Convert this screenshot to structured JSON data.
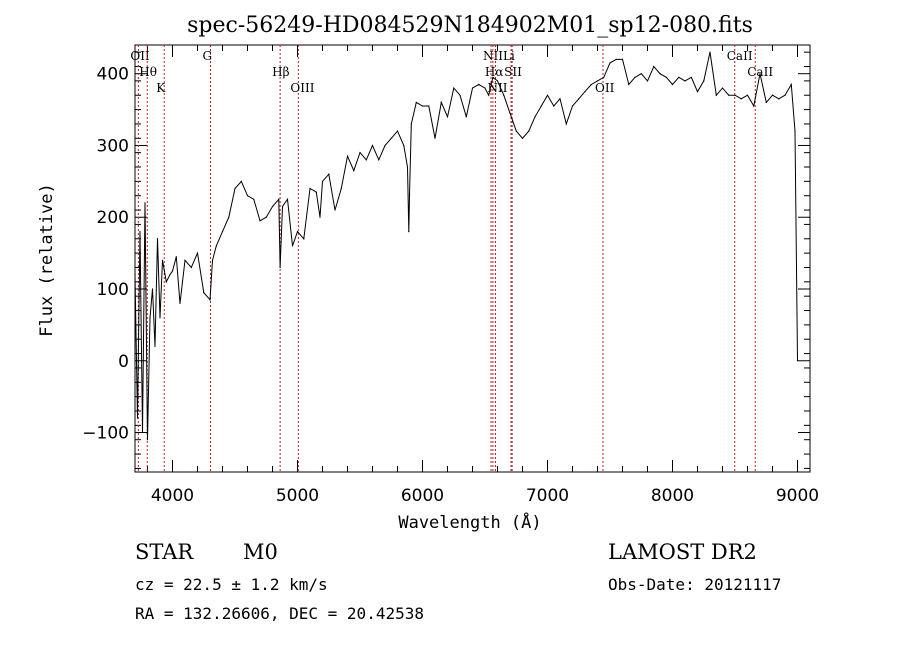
{
  "chart_data": {
    "type": "line",
    "title": "spec-56249-HD084529N184902M01_sp12-080.fits",
    "xlabel": "Wavelength (Å)",
    "ylabel": "Flux (relative)",
    "xlim": [
      3700,
      9100
    ],
    "ylim": [
      -155,
      440
    ],
    "x_ticks": [
      4000,
      5000,
      6000,
      7000,
      8000,
      9000
    ],
    "y_ticks": [
      -100,
      0,
      100,
      200,
      300,
      400
    ],
    "grid": false,
    "legend": "none",
    "series": [
      {
        "x": [
          3700,
          3720,
          3740,
          3760,
          3780,
          3800,
          3820,
          3840,
          3860,
          3880,
          3900,
          3920,
          3950,
          3980,
          4000,
          4030,
          4060,
          4100,
          4150,
          4200,
          4250,
          4300,
          4320,
          4350,
          4400,
          4450,
          4500,
          4550,
          4600,
          4650,
          4700,
          4750,
          4800,
          4850,
          4861,
          4880,
          4920,
          4960,
          5000,
          5050,
          5100,
          5150,
          5180,
          5200,
          5250,
          5300,
          5350,
          5400,
          5450,
          5500,
          5550,
          5600,
          5650,
          5700,
          5750,
          5800,
          5850,
          5880,
          5890,
          5896,
          5910,
          5950,
          6000,
          6050,
          6100,
          6150,
          6200,
          6250,
          6300,
          6350,
          6400,
          6450,
          6500,
          6530,
          6563,
          6600,
          6650,
          6700,
          6750,
          6800,
          6850,
          6900,
          6950,
          7000,
          7050,
          7100,
          7150,
          7200,
          7250,
          7300,
          7350,
          7400,
          7450,
          7500,
          7550,
          7600,
          7650,
          7700,
          7750,
          7800,
          7850,
          7900,
          7950,
          8000,
          8050,
          8100,
          8150,
          8200,
          8250,
          8300,
          8350,
          8400,
          8450,
          8500,
          8550,
          8600,
          8650,
          8700,
          8750,
          8800,
          8850,
          8900,
          8950,
          8980,
          9000
        ],
        "y": [
          120,
          -80,
          180,
          -100,
          220,
          -110,
          60,
          100,
          20,
          170,
          60,
          140,
          110,
          120,
          125,
          145,
          80,
          140,
          130,
          150,
          95,
          85,
          140,
          160,
          180,
          200,
          240,
          250,
          230,
          225,
          195,
          200,
          215,
          225,
          130,
          215,
          225,
          160,
          180,
          170,
          240,
          235,
          200,
          250,
          260,
          210,
          240,
          285,
          265,
          290,
          280,
          300,
          280,
          300,
          310,
          320,
          300,
          270,
          180,
          230,
          330,
          360,
          355,
          355,
          310,
          360,
          340,
          380,
          370,
          340,
          380,
          385,
          380,
          370,
          395,
          390,
          370,
          345,
          320,
          310,
          320,
          340,
          355,
          370,
          355,
          365,
          330,
          355,
          365,
          375,
          385,
          390,
          395,
          415,
          420,
          420,
          385,
          395,
          400,
          390,
          410,
          400,
          395,
          385,
          395,
          390,
          395,
          375,
          390,
          430,
          370,
          380,
          370,
          370,
          365,
          370,
          355,
          400,
          360,
          370,
          365,
          370,
          385,
          320,
          0
        ]
      }
    ],
    "lines": [
      {
        "x": 3727,
        "label": "OII"
      },
      {
        "x": 3798,
        "label": "Hθ"
      },
      {
        "x": 3934,
        "label": "K"
      },
      {
        "x": 4304,
        "label": "G"
      },
      {
        "x": 4861,
        "label": "Hβ"
      },
      {
        "x": 5007,
        "label": "OIII"
      },
      {
        "x": 6548,
        "label": "NII"
      },
      {
        "x": 6563,
        "label": "Hα"
      },
      {
        "x": 6584,
        "label": "NII"
      },
      {
        "x": 6708,
        "label": "Li"
      },
      {
        "x": 6717,
        "label": "SII"
      },
      {
        "x": 7444,
        "label": "OII"
      },
      {
        "x": 8498,
        "label": "CaII"
      },
      {
        "x": 8662,
        "label": "CaII"
      }
    ]
  },
  "info": {
    "object_class": "STAR",
    "subclass": "M0",
    "survey": "LAMOST DR2",
    "redshift": "cz = 22.5 ± 1.2 km/s",
    "obs_date": "Obs-Date: 20121117",
    "coords": "RA = 132.26606, DEC =  20.42538"
  }
}
